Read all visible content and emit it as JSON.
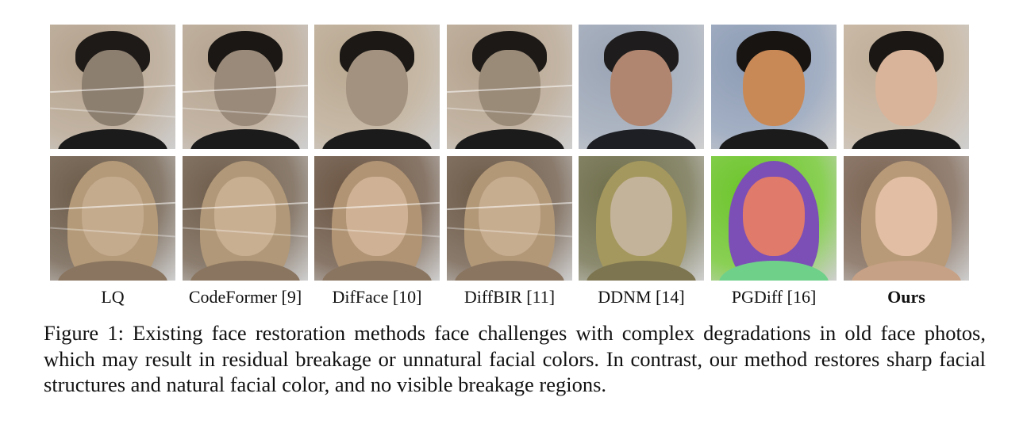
{
  "figure": {
    "methods": [
      {
        "label": "LQ",
        "bold": false,
        "tones": [
          {
            "bg": "#b3a18c",
            "hair": "#1e1a17",
            "face": "#8d7f70",
            "body": "#1b1b1b",
            "cracks": true
          },
          {
            "bg": "#6b5a48",
            "hair": "#b49a78",
            "face": "#c4ab8e",
            "body": "#8a7560",
            "cracks": true
          }
        ]
      },
      {
        "label": "CodeFormer [9]",
        "bold": false,
        "tones": [
          {
            "bg": "#b5a38f",
            "hair": "#1a1714",
            "face": "#9a8a7a",
            "body": "#1b1b1b",
            "cracks": true
          },
          {
            "bg": "#6e5c4a",
            "hair": "#b19878",
            "face": "#c9af92",
            "body": "#8a7560",
            "cracks": true
          }
        ]
      },
      {
        "label": "DifFace [10]",
        "bold": false,
        "tones": [
          {
            "bg": "#b9a891",
            "hair": "#1b1815",
            "face": "#a39280",
            "body": "#1b1b1b",
            "cracks": false
          },
          {
            "bg": "#6a5442",
            "hair": "#b09474",
            "face": "#cfb295",
            "body": "#8a7560",
            "cracks": true
          }
        ]
      },
      {
        "label": "DiffBIR [11]",
        "bold": false,
        "tones": [
          {
            "bg": "#b4a28d",
            "hair": "#1c1916",
            "face": "#9a8a78",
            "body": "#1b1b1b",
            "cracks": true
          },
          {
            "bg": "#6c5947",
            "hair": "#b29877",
            "face": "#c7ad90",
            "body": "#8a7560",
            "cracks": true
          }
        ]
      },
      {
        "label": "DDNM [14]",
        "bold": false,
        "tones": [
          {
            "bg": "#9aa4b4",
            "hair": "#1e1c1c",
            "face": "#b08670",
            "body": "#1d1f24",
            "cracks": false
          },
          {
            "bg": "#6e6d4a",
            "hair": "#a5985e",
            "face": "#c3b39a",
            "body": "#7d7550",
            "cracks": false
          }
        ]
      },
      {
        "label": "PGDiff [16]",
        "bold": false,
        "tones": [
          {
            "bg": "#8d9cb5",
            "hair": "#181412",
            "face": "#c98956",
            "body": "#1b1b1b",
            "cracks": false
          },
          {
            "bg": "#6cc42a",
            "hair": "#7b4fb6",
            "face": "#e07a6a",
            "body": "#6fd08a",
            "cracks": false
          }
        ]
      },
      {
        "label": "Ours",
        "bold": true,
        "tones": [
          {
            "bg": "#c0ae98",
            "hair": "#1a1714",
            "face": "#d9b49a",
            "body": "#1b1b1b",
            "cracks": false
          },
          {
            "bg": "#7a6352",
            "hair": "#b89a78",
            "face": "#e2bfa4",
            "body": "#c7a185",
            "cracks": false
          }
        ]
      }
    ],
    "caption": "Figure 1: Existing face restoration methods face challenges with complex degradations in old face photos, which may result in residual breakage or unnatural facial colors. In contrast, our method restores sharp facial structures and natural facial color, and no visible breakage regions."
  }
}
